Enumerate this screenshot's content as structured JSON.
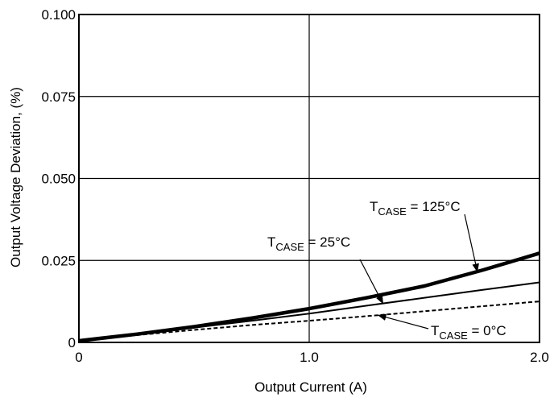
{
  "chart_data": {
    "type": "line",
    "xlabel": "Output Current (A)",
    "ylabel": "Output Voltage Deviation, (%)",
    "xlim": [
      0,
      2.0
    ],
    "ylim": [
      0,
      0.1
    ],
    "xticks": [
      0,
      1.0,
      2.0
    ],
    "xtick_labels": [
      "0",
      "1.0",
      "2.0"
    ],
    "yticks": [
      0,
      0.025,
      0.05,
      0.075,
      0.1
    ],
    "ytick_labels": [
      "0",
      "0.025",
      "0.050",
      "0.075",
      "0.100"
    ],
    "grid": true,
    "series": [
      {
        "name": "TCASE = 125°C",
        "label_main": "T",
        "label_sub": "CASE",
        "label_rest": " = 125°C",
        "style": "thick",
        "x": [
          0,
          0.25,
          0.5,
          0.75,
          1.0,
          1.25,
          1.5,
          1.75,
          2.0
        ],
        "y": [
          0.0005,
          0.0025,
          0.0048,
          0.0074,
          0.0103,
          0.0136,
          0.0172,
          0.022,
          0.0272
        ]
      },
      {
        "name": "TCASE = 25°C",
        "label_main": "T",
        "label_sub": "CASE",
        "label_rest": " = 25°C",
        "style": "thin",
        "x": [
          0,
          0.25,
          0.5,
          0.75,
          1.0,
          1.25,
          1.5,
          1.75,
          2.0
        ],
        "y": [
          0.0005,
          0.0025,
          0.0045,
          0.0066,
          0.0088,
          0.0112,
          0.0136,
          0.016,
          0.0183
        ]
      },
      {
        "name": "TCASE = 0°C",
        "label_main": "T",
        "label_sub": "CASE",
        "label_rest": " = 0°C",
        "style": "dashed",
        "x": [
          0,
          0.25,
          0.5,
          0.75,
          1.0,
          1.25,
          1.5,
          1.75,
          2.0
        ],
        "y": [
          0.0005,
          0.0022,
          0.0038,
          0.0053,
          0.0066,
          0.008,
          0.0095,
          0.011,
          0.0125
        ]
      }
    ]
  }
}
